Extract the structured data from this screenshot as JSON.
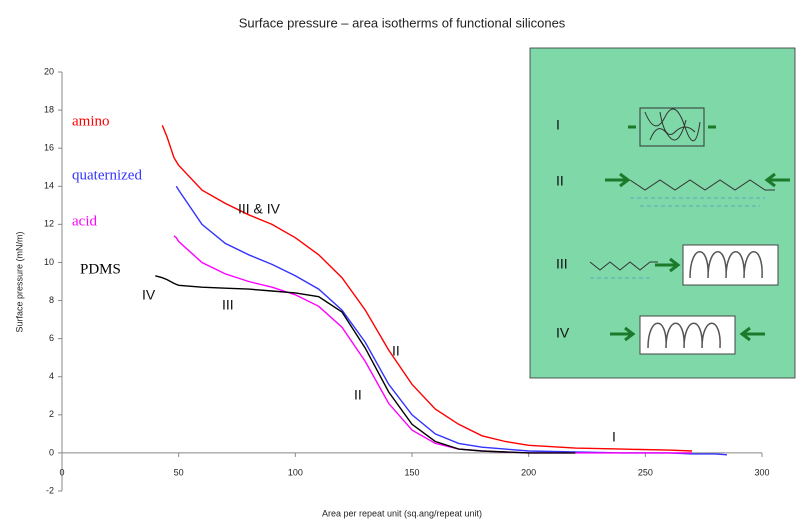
{
  "chart_data": {
    "type": "line",
    "title": "Surface pressure – area isotherms of functional silicones",
    "x_label": "Area per repeat unit (sq.ang/repeat unit)",
    "y_label": "Surface pressure (mN/m)",
    "x": [
      40,
      43,
      45,
      48,
      49,
      50,
      60,
      70,
      80,
      90,
      100,
      110,
      120,
      130,
      140,
      150,
      160,
      170,
      180,
      190,
      200,
      220,
      240,
      260,
      270,
      280,
      285
    ],
    "series": [
      {
        "name": "amino",
        "color": "#ff0000",
        "values": [
          null,
          17.2,
          16.6,
          15.5,
          15.3,
          15.1,
          13.8,
          13.1,
          12.5,
          12.0,
          11.3,
          10.4,
          9.2,
          7.5,
          5.4,
          3.6,
          2.3,
          1.5,
          0.9,
          0.6,
          0.4,
          0.25,
          0.2,
          0.15,
          0.1,
          null,
          null
        ]
      },
      {
        "name": "quaternized",
        "color": "#3333ff",
        "values": [
          null,
          null,
          null,
          null,
          14.0,
          13.8,
          12.0,
          11.0,
          10.4,
          9.9,
          9.3,
          8.6,
          7.5,
          5.8,
          3.6,
          2.0,
          1.0,
          0.5,
          0.3,
          0.2,
          0.1,
          0.05,
          0,
          0,
          -0.05,
          -0.05,
          -0.1
        ]
      },
      {
        "name": "acid",
        "color": "#ff00ff",
        "values": [
          null,
          null,
          null,
          11.4,
          11.3,
          11.1,
          10.0,
          9.4,
          9.0,
          8.7,
          8.3,
          7.7,
          6.6,
          4.8,
          2.6,
          1.2,
          0.5,
          0.2,
          0.1,
          0.05,
          0,
          0,
          0,
          0,
          0,
          null,
          null
        ]
      },
      {
        "name": "PDMS",
        "color": "#000000",
        "values": [
          9.3,
          9.2,
          9.1,
          8.9,
          8.85,
          8.8,
          8.7,
          8.65,
          8.6,
          8.5,
          8.4,
          8.2,
          7.4,
          5.5,
          3.2,
          1.5,
          0.6,
          0.2,
          0.1,
          0.05,
          0,
          0,
          null,
          null,
          null,
          null,
          null
        ]
      }
    ],
    "xlim": [
      0,
      300
    ],
    "ylim": [
      -2,
      20
    ],
    "xticks": [
      0,
      50,
      100,
      150,
      200,
      250,
      300
    ],
    "yticks": [
      -2,
      0,
      2,
      4,
      6,
      8,
      10,
      12,
      14,
      16,
      18,
      20
    ],
    "grid": false,
    "annotations": [
      "III & IV",
      "IV",
      "III",
      "II",
      "II",
      "I"
    ],
    "inset": {
      "color": "#7fd8a8",
      "labels": [
        "I",
        "II",
        "III",
        "IV"
      ]
    }
  }
}
